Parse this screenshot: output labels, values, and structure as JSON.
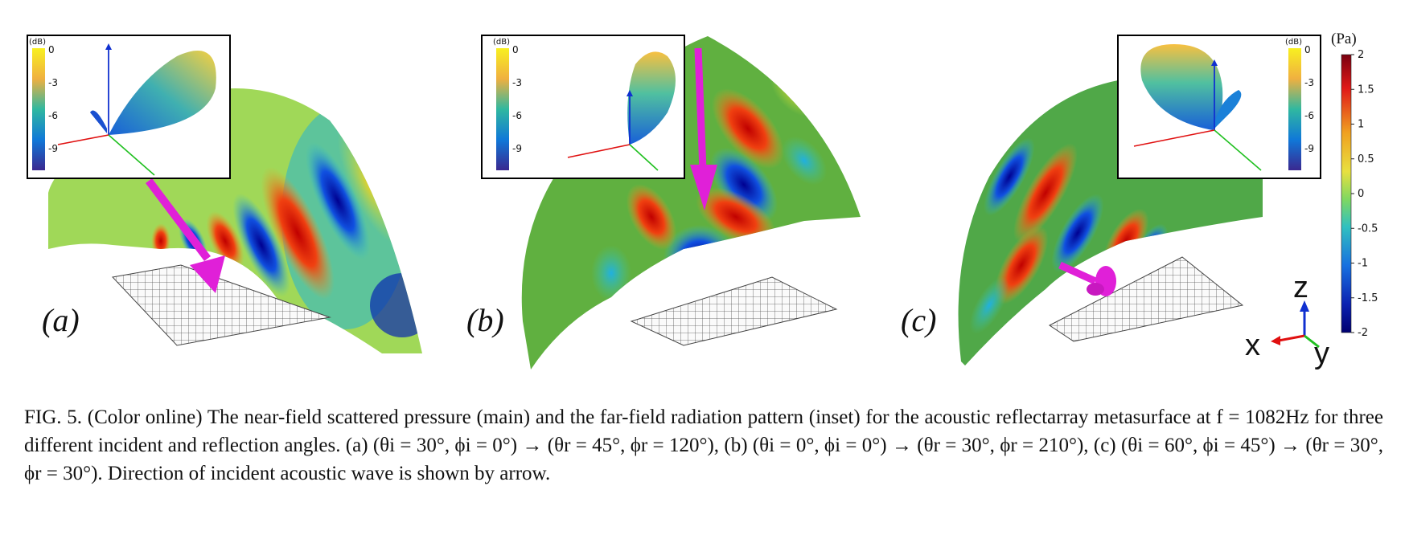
{
  "panels": [
    {
      "label": "(a)"
    },
    {
      "label": "(b)"
    },
    {
      "label": "(c)"
    }
  ],
  "inset": {
    "unit": "(dB)",
    "ticks": [
      "0",
      "-3",
      "-6",
      "-9"
    ]
  },
  "colorbar": {
    "unit": "(Pa)",
    "ticks": [
      "2",
      "1.5",
      "1",
      "0.5",
      "0",
      "-0.5",
      "-1",
      "-1.5",
      "-2"
    ]
  },
  "axes": {
    "z": "z",
    "x": "x",
    "y": "y"
  },
  "colors": {
    "arrow": "#e020d8",
    "red_axis": "#e01010",
    "blue_axis": "#1030d0",
    "green_axis": "#20c020"
  },
  "caption": {
    "text": "FIG. 5.  (Color online) The near-field scattered pressure (main) and the far-field radiation pattern (inset) for the acoustic reflectarray metasurface at f = 1082Hz for three different incident and reflection angles. (a) (θi = 30°, ϕi = 0°) → (θr = 45°, ϕr = 120°), (b) (θi = 0°, ϕi = 0°) → (θr = 30°, ϕr = 210°), (c) (θi = 60°, ϕi = 45°) → (θr = 30°, ϕr = 30°). Direction of incident acoustic wave is shown by arrow."
  }
}
